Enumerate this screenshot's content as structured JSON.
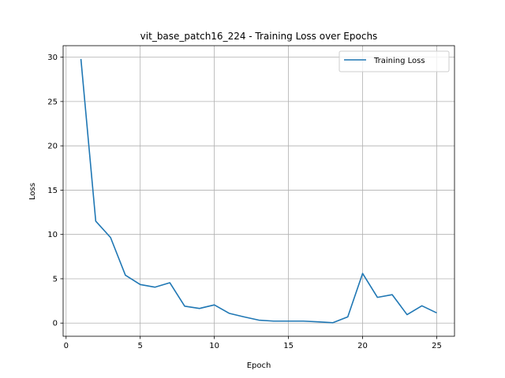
{
  "chart_data": {
    "type": "line",
    "title": "vit_base_patch16_224 - Training Loss over Epochs",
    "xlabel": "Epoch",
    "ylabel": "Loss",
    "xlim": [
      -0.2,
      26.2
    ],
    "ylim": [
      -1.49,
      31.3
    ],
    "xticks": [
      0,
      5,
      10,
      15,
      20,
      25
    ],
    "yticks": [
      0,
      5,
      10,
      15,
      20,
      25,
      30
    ],
    "grid": true,
    "legend_position": "top-right",
    "series": [
      {
        "name": "Training Loss",
        "color": "#1f77b4",
        "x": [
          1,
          2,
          3,
          4,
          5,
          6,
          7,
          8,
          9,
          10,
          11,
          12,
          13,
          14,
          15,
          16,
          17,
          18,
          19,
          20,
          21,
          22,
          23,
          24,
          25
        ],
        "y": [
          29.8,
          11.5,
          9.65,
          5.4,
          4.35,
          4.05,
          4.55,
          1.9,
          1.65,
          2.05,
          1.1,
          0.7,
          0.33,
          0.22,
          0.22,
          0.22,
          0.14,
          0.04,
          0.7,
          5.6,
          2.9,
          3.2,
          0.95,
          1.95,
          1.15
        ]
      }
    ]
  }
}
